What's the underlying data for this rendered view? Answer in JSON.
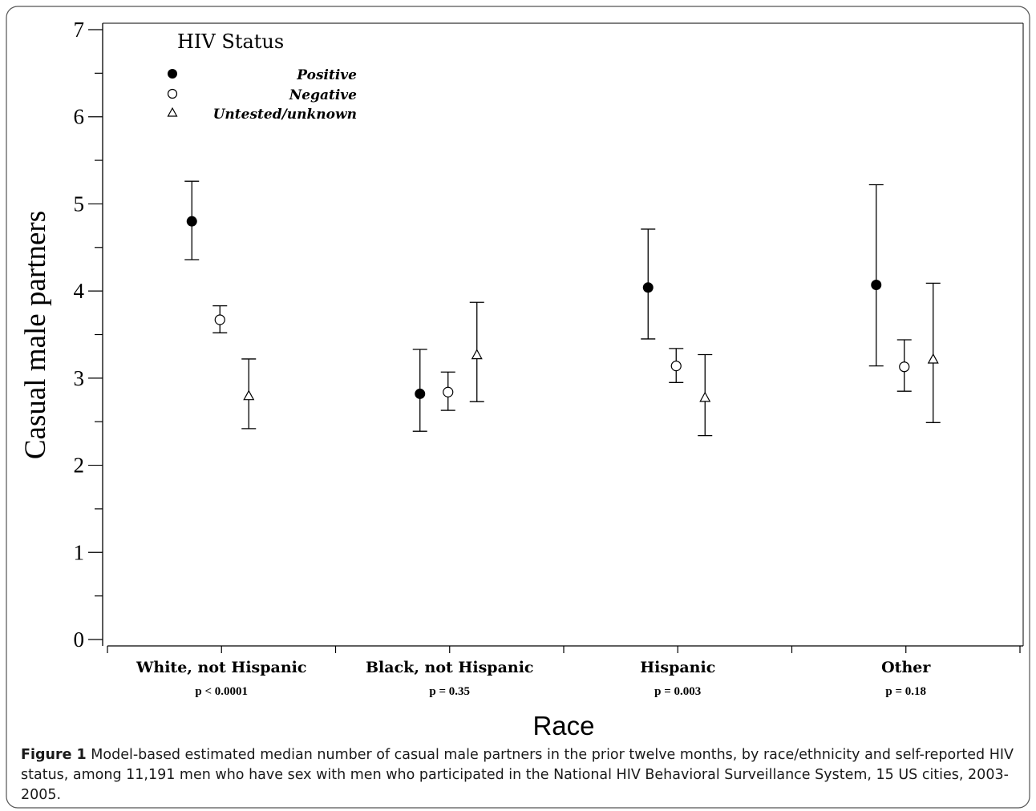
{
  "chart_data": {
    "type": "scatter",
    "ylabel": "Casual male partners",
    "xlabel": "Race",
    "ylim": [
      0,
      7
    ],
    "yticks": [
      "0",
      "1",
      "2",
      "3",
      "4",
      "5",
      "6",
      "7"
    ],
    "grid": false,
    "legend": {
      "title": "HIV Status",
      "placement": "top-left",
      "entries": [
        "Positive",
        "Negative",
        "Untested/unknown"
      ]
    },
    "categories": [
      {
        "label": "White, not Hispanic",
        "pvalue": "p < 0.0001"
      },
      {
        "label": "Black, not Hispanic",
        "pvalue": "p = 0.35"
      },
      {
        "label": "Hispanic",
        "pvalue": "p = 0.003"
      },
      {
        "label": "Other",
        "pvalue": "p = 0.18"
      }
    ],
    "series": [
      {
        "name": "Positive",
        "marker": "filled-circle",
        "values": [
          4.8,
          2.82,
          4.04,
          4.07
        ],
        "lower": [
          4.36,
          2.39,
          3.45,
          3.14
        ],
        "upper": [
          5.26,
          3.33,
          4.71,
          5.22
        ]
      },
      {
        "name": "Negative",
        "marker": "open-circle",
        "values": [
          3.67,
          2.84,
          3.14,
          3.13
        ],
        "lower": [
          3.52,
          2.63,
          2.95,
          2.85
        ],
        "upper": [
          3.83,
          3.07,
          3.34,
          3.44
        ]
      },
      {
        "name": "Untested/unknown",
        "marker": "open-triangle",
        "values": [
          2.79,
          3.26,
          2.77,
          3.21
        ],
        "lower": [
          2.42,
          2.73,
          2.34,
          2.49
        ],
        "upper": [
          3.22,
          3.87,
          3.27,
          4.09
        ]
      }
    ]
  },
  "caption": {
    "label": "Figure 1",
    "text": "Model-based estimated median number of casual male partners in the prior twelve months, by race/ethnicity and self-reported HIV status, among 11,191 men who have sex with men who participated in the National HIV Behavioral Surveillance System, 15 US cities, 2003-2005."
  }
}
